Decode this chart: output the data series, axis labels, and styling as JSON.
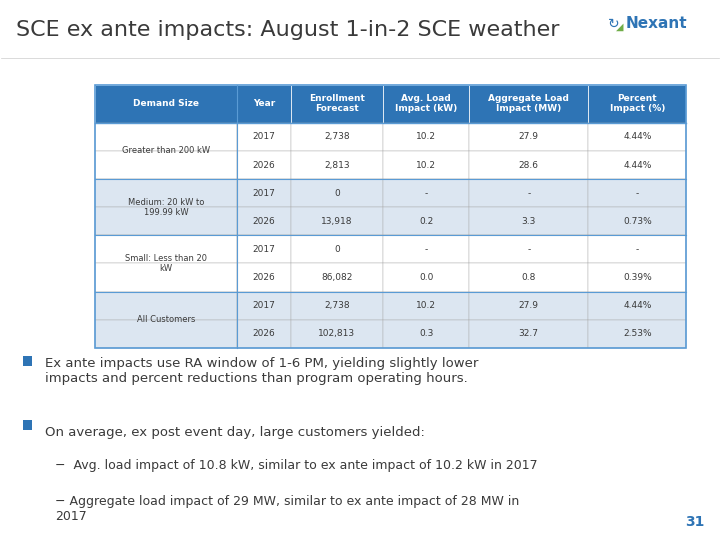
{
  "title": "SCE ex ante impacts: August 1-in-2 SCE weather",
  "title_color": "#3a3a3a",
  "title_fontsize": 16,
  "background_color": "#ffffff",
  "table_header_bg": "#2e74b5",
  "table_header_text": "#ffffff",
  "table_header_fontsize": 8,
  "table_row_bg_alt": "#dce6f1",
  "table_row_bg_white": "#ffffff",
  "table_border_color": "#5a9bd5",
  "col_headers": [
    "Demand Size",
    "Year",
    "Enrollment\nForecast",
    "Avg. Load\nImpact (kW)",
    "Aggregate Load\nImpact (MW)",
    "Percent\nImpact (%)"
  ],
  "rows": [
    [
      "Greater than 200 kW",
      "2017",
      "2,738",
      "10.2",
      "27.9",
      "4.44%"
    ],
    [
      "Greater than 200 kW",
      "2026",
      "2,813",
      "10.2",
      "28.6",
      "4.44%"
    ],
    [
      "Medium: 20 kW to\n199.99 kW",
      "2017",
      "0",
      "-",
      "-",
      "-"
    ],
    [
      "Medium: 20 kW to\n199.99 kW",
      "2026",
      "13,918",
      "0.2",
      "3.3",
      "0.73%"
    ],
    [
      "Small: Less than 20\nkW",
      "2017",
      "0",
      "-",
      "-",
      "-"
    ],
    [
      "Small: Less than 20\nkW",
      "2026",
      "86,082",
      "0.0",
      "0.8",
      "0.39%"
    ],
    [
      "All Customers",
      "2017",
      "2,738",
      "10.2",
      "27.9",
      "4.44%"
    ],
    [
      "All Customers",
      "2026",
      "102,813",
      "0.3",
      "32.7",
      "2.53%"
    ]
  ],
  "bullet1": "Ex ante impacts use RA window of 1-6 PM, yielding slightly lower\nimpacts and percent reductions than program operating hours.",
  "bullet2": "On average, ex post event day, large customers yielded:",
  "sub_bullet1": "Avg. load impact of 10.8 kW, similar to ex ante impact of 10.2 kW in 2017",
  "sub_bullet2": "Aggregate load impact of 29 MW, similar to ex ante impact of 28 MW in\n2017",
  "bullet_color": "#3a3a3a",
  "bullet_square_color": "#2e74b5",
  "page_number": "31",
  "page_number_color": "#2e74b5",
  "nexant_blue": "#2e74b5",
  "nexant_green": "#70ad47"
}
